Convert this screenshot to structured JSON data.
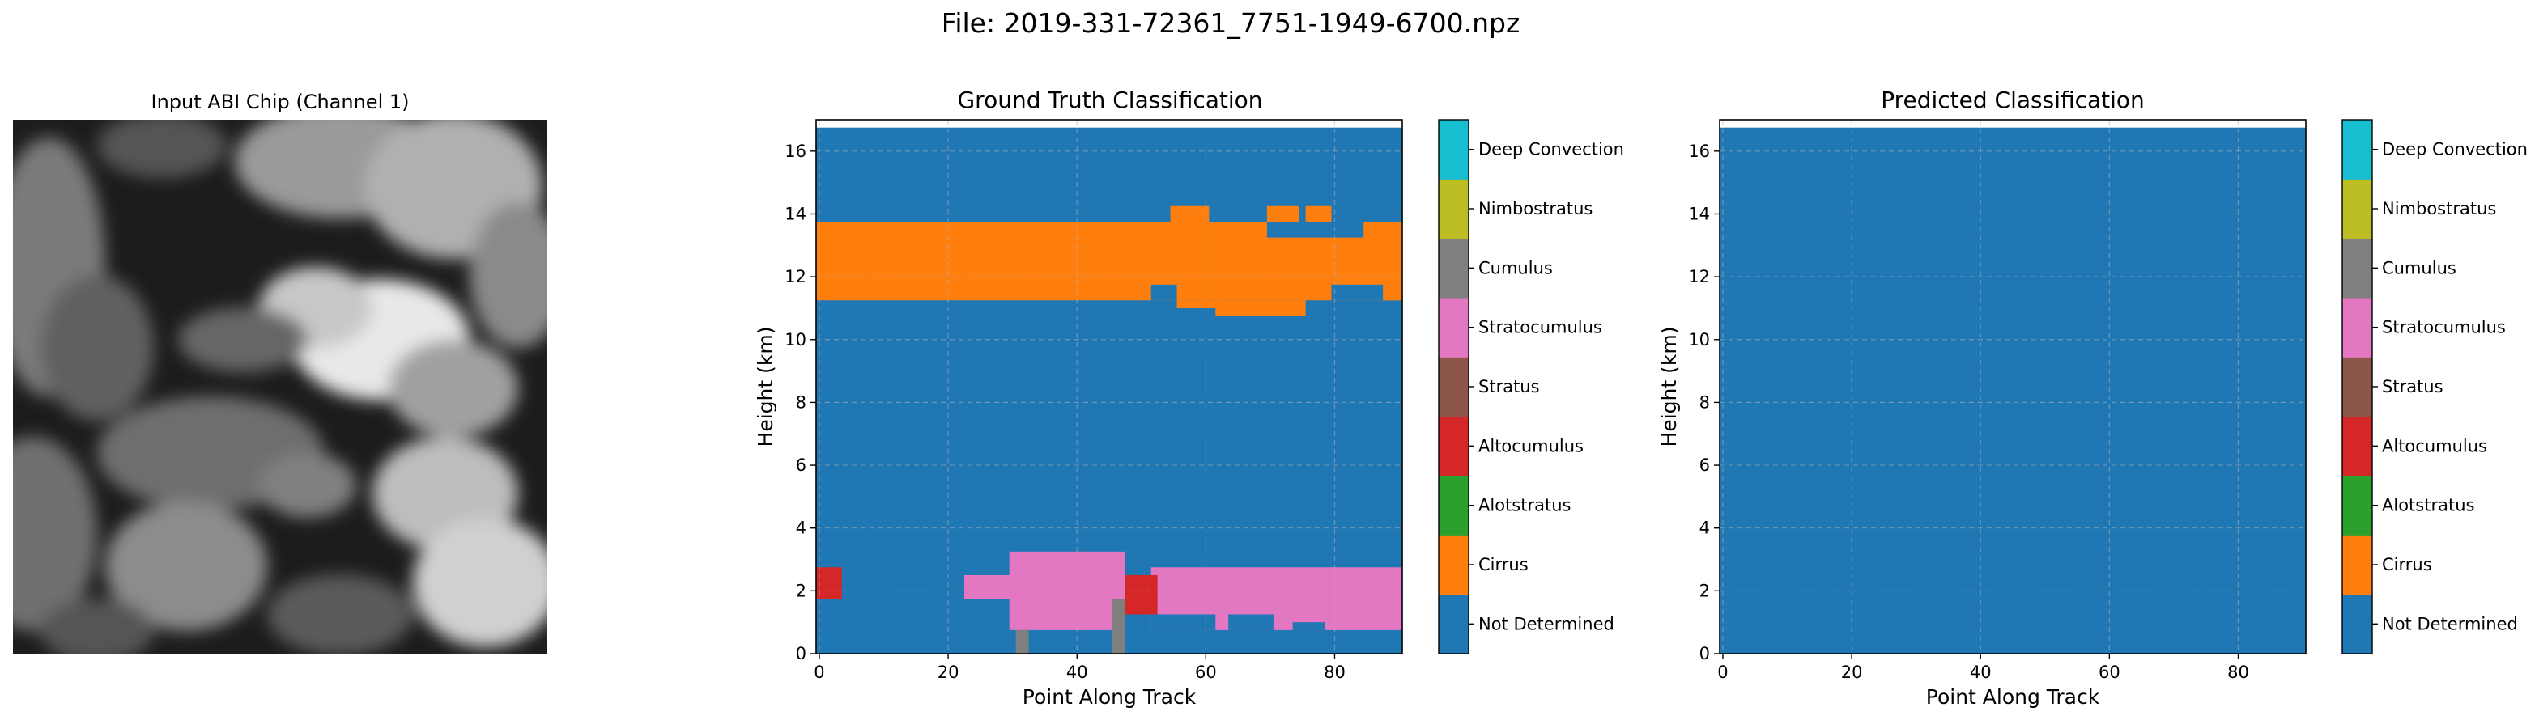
{
  "figure": {
    "title": "File: 2019-331-72361_7751-1949-6700.npz"
  },
  "palette": {
    "not_determined": "#1f77b4",
    "cirrus": "#ff7f0e",
    "alotstratus": "#2ca02c",
    "altocumulus": "#d62728",
    "stratus": "#8c564b",
    "stratocumulus": "#e377c2",
    "cumulus": "#7f7f7f",
    "nimbostratus": "#bcbd22",
    "deep_convection": "#17becf"
  },
  "chart_data": [
    {
      "type": "image",
      "title": "Input ABI Chip (Channel 1)",
      "colormap": "gray",
      "axes": "off"
    },
    {
      "type": "heatmap",
      "title": "Ground Truth Classification",
      "xlabel": "Point Along Track",
      "ylabel": "Height (km)",
      "xlim": [
        -0.5,
        90.5
      ],
      "ylim": [
        0,
        17
      ],
      "data_top_km": 16.75,
      "xticks": [
        0,
        20,
        40,
        60,
        80
      ],
      "yticks": [
        0,
        2,
        4,
        6,
        8,
        10,
        12,
        14,
        16
      ],
      "grid": true,
      "background_class": "Not Determined",
      "regions": [
        {
          "class": "Cirrus",
          "x": [
            0,
            90
          ],
          "y": [
            11.25,
            13.75
          ]
        },
        {
          "class": "Cirrus",
          "x": [
            55,
            60
          ],
          "y": [
            13.75,
            14.25
          ]
        },
        {
          "class": "Cirrus",
          "x": [
            70,
            74
          ],
          "y": [
            13.75,
            14.25
          ]
        },
        {
          "class": "Cirrus",
          "x": [
            76,
            79
          ],
          "y": [
            13.75,
            14.25
          ]
        },
        {
          "class": "Cirrus",
          "x": [
            85,
            89
          ],
          "y": [
            13.25,
            13.75
          ]
        },
        {
          "class": "Cirrus",
          "x": [
            62,
            75
          ],
          "y": [
            10.75,
            11.25
          ]
        },
        {
          "class": "Cirrus",
          "x": [
            56,
            62
          ],
          "y": [
            11.0,
            11.25
          ]
        },
        {
          "class": "Cirrus",
          "x": [
            88,
            90
          ],
          "y": [
            11.25,
            11.75
          ]
        },
        {
          "class": "Not Determined",
          "x": [
            70,
            84
          ],
          "y": [
            13.25,
            13.75
          ]
        },
        {
          "class": "Not Determined",
          "x": [
            80,
            87
          ],
          "y": [
            11.25,
            11.75
          ]
        },
        {
          "class": "Not Determined",
          "x": [
            52,
            55
          ],
          "y": [
            11.25,
            11.75
          ]
        },
        {
          "class": "Stratocumulus",
          "x": [
            30,
            47
          ],
          "y": [
            0.75,
            3.25
          ]
        },
        {
          "class": "Stratocumulus",
          "x": [
            23,
            50
          ],
          "y": [
            1.75,
            2.5
          ]
        },
        {
          "class": "Stratocumulus",
          "x": [
            52,
            90
          ],
          "y": [
            0.75,
            2.75
          ]
        },
        {
          "class": "Not Determined",
          "x": [
            52,
            61
          ],
          "y": [
            0.75,
            1.25
          ]
        },
        {
          "class": "Not Determined",
          "x": [
            64,
            70
          ],
          "y": [
            0.75,
            1.25
          ]
        },
        {
          "class": "Not Determined",
          "x": [
            74,
            78
          ],
          "y": [
            0.75,
            1.0
          ]
        },
        {
          "class": "Altocumulus",
          "x": [
            0,
            3
          ],
          "y": [
            1.75,
            2.75
          ]
        },
        {
          "class": "Altocumulus",
          "x": [
            48,
            52
          ],
          "y": [
            1.25,
            2.5
          ]
        },
        {
          "class": "Cumulus",
          "x": [
            46,
            47
          ],
          "y": [
            0,
            1.75
          ]
        },
        {
          "class": "Cumulus",
          "x": [
            31,
            32
          ],
          "y": [
            0,
            0.75
          ]
        }
      ],
      "colorbar": {
        "labels": [
          "Not Determined",
          "Cirrus",
          "Alotstratus",
          "Altocumulus",
          "Stratus",
          "Stratocumulus",
          "Cumulus",
          "Nimbostratus",
          "Deep Convection"
        ]
      }
    },
    {
      "type": "heatmap",
      "title": "Predicted Classification",
      "xlabel": "Point Along Track",
      "ylabel": "Height (km)",
      "xlim": [
        -0.5,
        90.5
      ],
      "ylim": [
        0,
        17
      ],
      "data_top_km": 16.75,
      "xticks": [
        0,
        20,
        40,
        60,
        80
      ],
      "yticks": [
        0,
        2,
        4,
        6,
        8,
        10,
        12,
        14,
        16
      ],
      "grid": true,
      "background_class": "Not Determined",
      "regions": [],
      "colorbar": {
        "labels": [
          "Not Determined",
          "Cirrus",
          "Alotstratus",
          "Altocumulus",
          "Stratus",
          "Stratocumulus",
          "Cumulus",
          "Nimbostratus",
          "Deep Convection"
        ]
      }
    }
  ]
}
